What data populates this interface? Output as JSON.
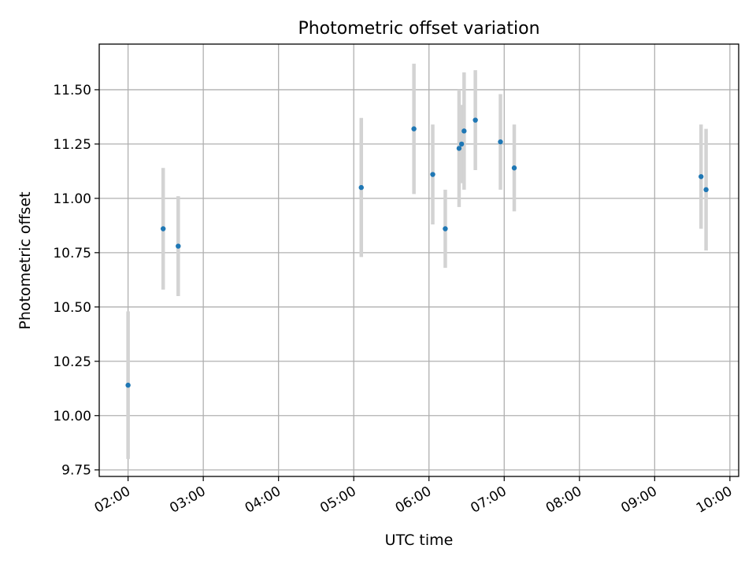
{
  "chart_data": {
    "type": "scatter",
    "title": "Photometric offset variation",
    "xlabel": "UTC time",
    "ylabel": "Photometric offset",
    "xlim": [
      "01:37",
      "10:07"
    ],
    "ylim": [
      9.72,
      11.71
    ],
    "x_ticks": [
      "02:00",
      "03:00",
      "04:00",
      "05:00",
      "06:00",
      "07:00",
      "08:00",
      "09:00",
      "10:00"
    ],
    "y_ticks": [
      "9.75",
      "10.00",
      "10.25",
      "10.50",
      "10.75",
      "11.00",
      "11.25",
      "11.50"
    ],
    "grid": true,
    "legend": "none",
    "points": [
      {
        "x": "02:00",
        "y": 10.14,
        "err": 0.34
      },
      {
        "x": "02:28",
        "y": 10.86,
        "err": 0.28
      },
      {
        "x": "02:40",
        "y": 10.78,
        "err": 0.23
      },
      {
        "x": "05:06",
        "y": 11.05,
        "err": 0.32
      },
      {
        "x": "05:48",
        "y": 11.32,
        "err": 0.3
      },
      {
        "x": "06:03",
        "y": 11.11,
        "err": 0.23
      },
      {
        "x": "06:13",
        "y": 10.86,
        "err": 0.18
      },
      {
        "x": "06:24",
        "y": 11.23,
        "err": 0.27
      },
      {
        "x": "06:26",
        "y": 11.25,
        "err": 0.18
      },
      {
        "x": "06:28",
        "y": 11.31,
        "err": 0.27
      },
      {
        "x": "06:37",
        "y": 11.36,
        "err": 0.23
      },
      {
        "x": "06:57",
        "y": 11.26,
        "err": 0.22
      },
      {
        "x": "07:08",
        "y": 11.14,
        "err": 0.2
      },
      {
        "x": "09:37",
        "y": 11.1,
        "err": 0.24
      },
      {
        "x": "09:41",
        "y": 11.04,
        "err": 0.28
      }
    ],
    "colors": {
      "marker": "#1f77b4",
      "errorbar": "#d3d3d3",
      "grid": "#b0b0b0"
    }
  }
}
